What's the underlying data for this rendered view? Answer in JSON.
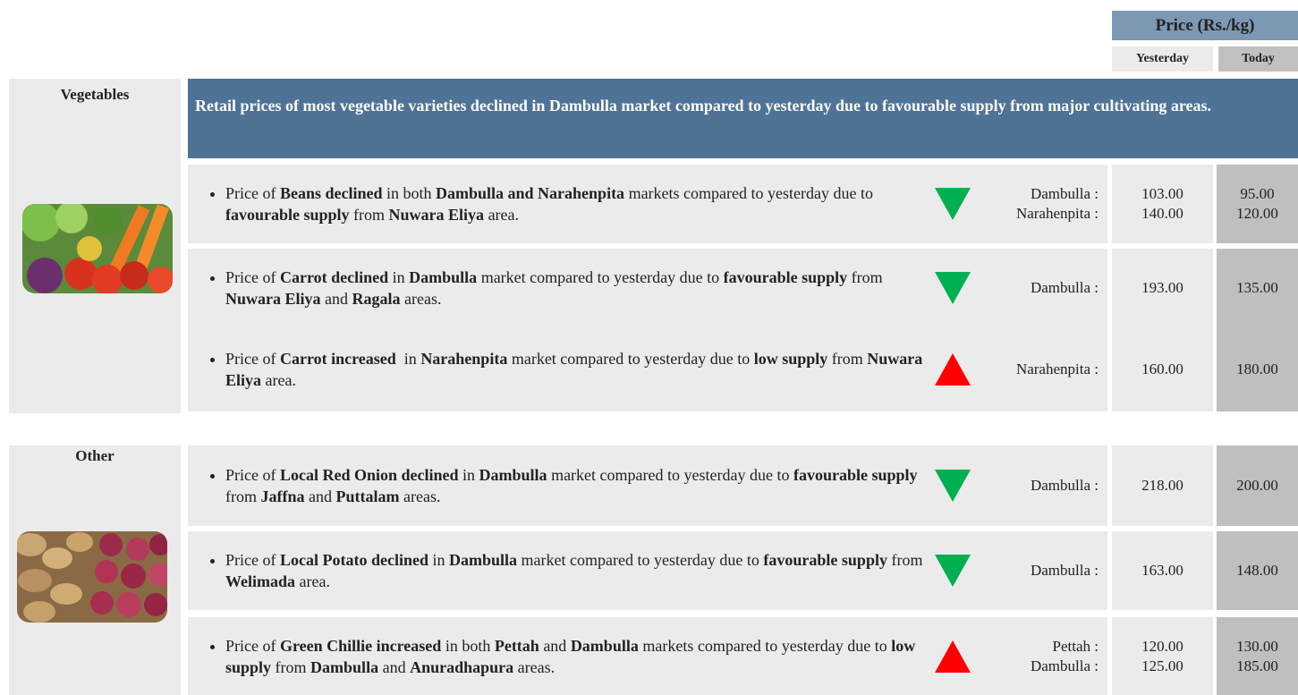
{
  "header": {
    "price_title": "Price (Rs./kg)",
    "yesterday": "Yesterday",
    "today": "Today"
  },
  "sections": [
    {
      "label": "Vegetables",
      "summary": "Retail prices of most vegetable varieties declined in Dambulla market compared to yesterday due to favourable supply from major cultivating areas.",
      "items": [
        {
          "segments": [
            {
              "text": "Price of ",
              "bold": false
            },
            {
              "text": "Beans declined",
              "bold": true
            },
            {
              "text": " in both ",
              "bold": false
            },
            {
              "text": "Dambulla and Narahenpita",
              "bold": true
            },
            {
              "text": " markets compared to yesterday due to ",
              "bold": false
            },
            {
              "text": "favourable supply",
              "bold": true
            },
            {
              "text": " from ",
              "bold": false
            },
            {
              "text": "Nuwara Eliya",
              "bold": true
            },
            {
              "text": " area.",
              "bold": false
            }
          ],
          "direction": "down",
          "markets": [
            {
              "name": "Dambulla :",
              "yesterday": "103.00",
              "today": "95.00"
            },
            {
              "name": "Narahenpita :",
              "yesterday": "140.00",
              "today": "120.00"
            }
          ]
        },
        {
          "segments": [
            {
              "text": "Price of ",
              "bold": false
            },
            {
              "text": "Carrot declined",
              "bold": true
            },
            {
              "text": " in ",
              "bold": false
            },
            {
              "text": "Dambulla",
              "bold": true
            },
            {
              "text": " market compared to yesterday due to ",
              "bold": false
            },
            {
              "text": "favourable supply",
              "bold": true
            },
            {
              "text": " from ",
              "bold": false
            },
            {
              "text": "Nuwara Eliya",
              "bold": true
            },
            {
              "text": " and ",
              "bold": false
            },
            {
              "text": "Ragala",
              "bold": true
            },
            {
              "text": " areas.",
              "bold": false
            }
          ],
          "direction": "down",
          "markets": [
            {
              "name": "Dambulla :",
              "yesterday": "193.00",
              "today": "135.00"
            }
          ]
        },
        {
          "segments": [
            {
              "text": "Price of ",
              "bold": false
            },
            {
              "text": "Carrot increased",
              "bold": true
            },
            {
              "text": "  in ",
              "bold": false
            },
            {
              "text": "Narahenpita",
              "bold": true
            },
            {
              "text": " market compared to yesterday due to ",
              "bold": false
            },
            {
              "text": "low supply",
              "bold": true
            },
            {
              "text": " from ",
              "bold": false
            },
            {
              "text": "Nuwara Eliya",
              "bold": true
            },
            {
              "text": " area.",
              "bold": false
            }
          ],
          "direction": "up",
          "markets": [
            {
              "name": "Narahenpita :",
              "yesterday": "160.00",
              "today": "180.00"
            }
          ]
        }
      ]
    },
    {
      "label": "Other",
      "items": [
        {
          "segments": [
            {
              "text": "Price of ",
              "bold": false
            },
            {
              "text": "Local Red Onion declined",
              "bold": true
            },
            {
              "text": " in ",
              "bold": false
            },
            {
              "text": "Dambulla",
              "bold": true
            },
            {
              "text": " market compared to yesterday due to ",
              "bold": false
            },
            {
              "text": "favourable supply",
              "bold": true
            },
            {
              "text": " from ",
              "bold": false
            },
            {
              "text": "Jaffna",
              "bold": true
            },
            {
              "text": " and ",
              "bold": false
            },
            {
              "text": "Puttalam",
              "bold": true
            },
            {
              "text": " areas.",
              "bold": false
            }
          ],
          "direction": "down",
          "markets": [
            {
              "name": "Dambulla :",
              "yesterday": "218.00",
              "today": "200.00"
            }
          ]
        },
        {
          "segments": [
            {
              "text": "Price of ",
              "bold": false
            },
            {
              "text": "Local Potato declined",
              "bold": true
            },
            {
              "text": " in ",
              "bold": false
            },
            {
              "text": "Dambulla",
              "bold": true
            },
            {
              "text": " market compared to yesterday due to ",
              "bold": false
            },
            {
              "text": "favourable supply",
              "bold": true
            },
            {
              "text": " from ",
              "bold": false
            },
            {
              "text": "Welimada",
              "bold": true
            },
            {
              "text": " area.",
              "bold": false
            }
          ],
          "direction": "down",
          "markets": [
            {
              "name": "Dambulla :",
              "yesterday": "163.00",
              "today": "148.00"
            }
          ]
        },
        {
          "segments": [
            {
              "text": "Price of ",
              "bold": false
            },
            {
              "text": "Green Chillie increased",
              "bold": true
            },
            {
              "text": " in both ",
              "bold": false
            },
            {
              "text": "Pettah",
              "bold": true
            },
            {
              "text": " and ",
              "bold": false
            },
            {
              "text": "Dambulla",
              "bold": true
            },
            {
              "text": " markets compared to yesterday due to ",
              "bold": false
            },
            {
              "text": "low supply",
              "bold": true
            },
            {
              "text": " from ",
              "bold": false
            },
            {
              "text": "Dambulla",
              "bold": true
            },
            {
              "text": " and ",
              "bold": false
            },
            {
              "text": "Anuradhapura",
              "bold": true
            },
            {
              "text": " areas.",
              "bold": false
            }
          ],
          "direction": "up",
          "markets": [
            {
              "name": "Pettah :",
              "yesterday": "120.00",
              "today": "130.00"
            },
            {
              "name": "Dambulla :",
              "yesterday": "125.00",
              "today": "185.00"
            }
          ]
        }
      ]
    }
  ]
}
